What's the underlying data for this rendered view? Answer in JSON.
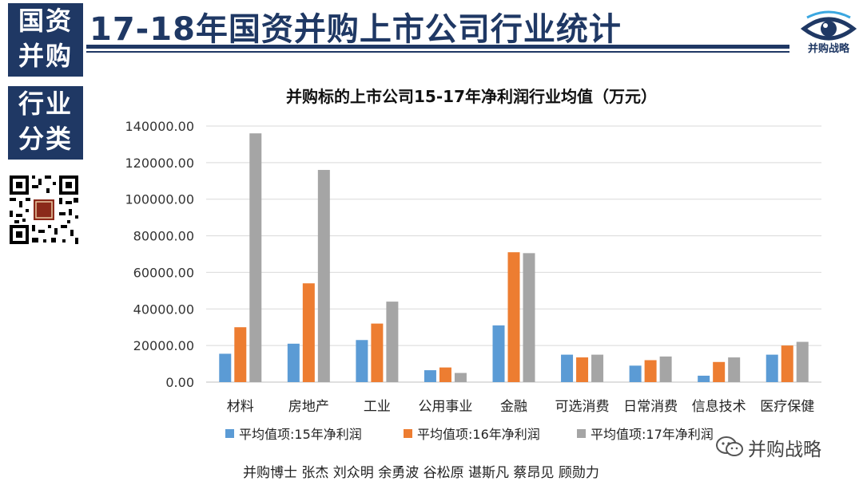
{
  "sidebar": {
    "tag1_line1": "国资",
    "tag1_line2": "并购",
    "tag2_line1": "行业",
    "tag2_line2": "分类"
  },
  "header": {
    "title": "17-18年国资并购上市公司行业统计",
    "logo_text": "并购战略"
  },
  "colors": {
    "navy": "#1f3864",
    "s1": "#5b9bd5",
    "s2": "#ed7d31",
    "s3": "#a5a5a5"
  },
  "chart_data": {
    "type": "bar",
    "title": "并购标的上市公司15-17年净利润行业均值（万元）",
    "xlabel": "",
    "ylabel": "",
    "ylim": [
      0,
      140000
    ],
    "yticks": [
      "0.00",
      "20000.00",
      "40000.00",
      "60000.00",
      "80000.00",
      "100000.00",
      "120000.00",
      "140000.00"
    ],
    "grid": true,
    "legend_position": "bottom",
    "categories": [
      "材料",
      "房地产",
      "工业",
      "公用事业",
      "金融",
      "可选消费",
      "日常消费",
      "信息技术",
      "医疗保健"
    ],
    "series": [
      {
        "name": "平均值项:15年净利润",
        "values": [
          15500,
          21000,
          23000,
          6500,
          31000,
          15000,
          9000,
          3500,
          15000
        ]
      },
      {
        "name": "平均值项:16年净利润",
        "values": [
          30000,
          54000,
          32000,
          8000,
          71000,
          13500,
          12000,
          11000,
          20000
        ]
      },
      {
        "name": "平均值项:17年净利润",
        "values": [
          136000,
          116000,
          44000,
          5000,
          70500,
          15000,
          14000,
          13500,
          22000
        ]
      }
    ]
  },
  "footer": {
    "authors": "并购博士 张杰 刘众明 余勇波 谷松原 谌斯凡 蔡昂见 顾勋力"
  },
  "watermark": {
    "text": "并购战略"
  }
}
